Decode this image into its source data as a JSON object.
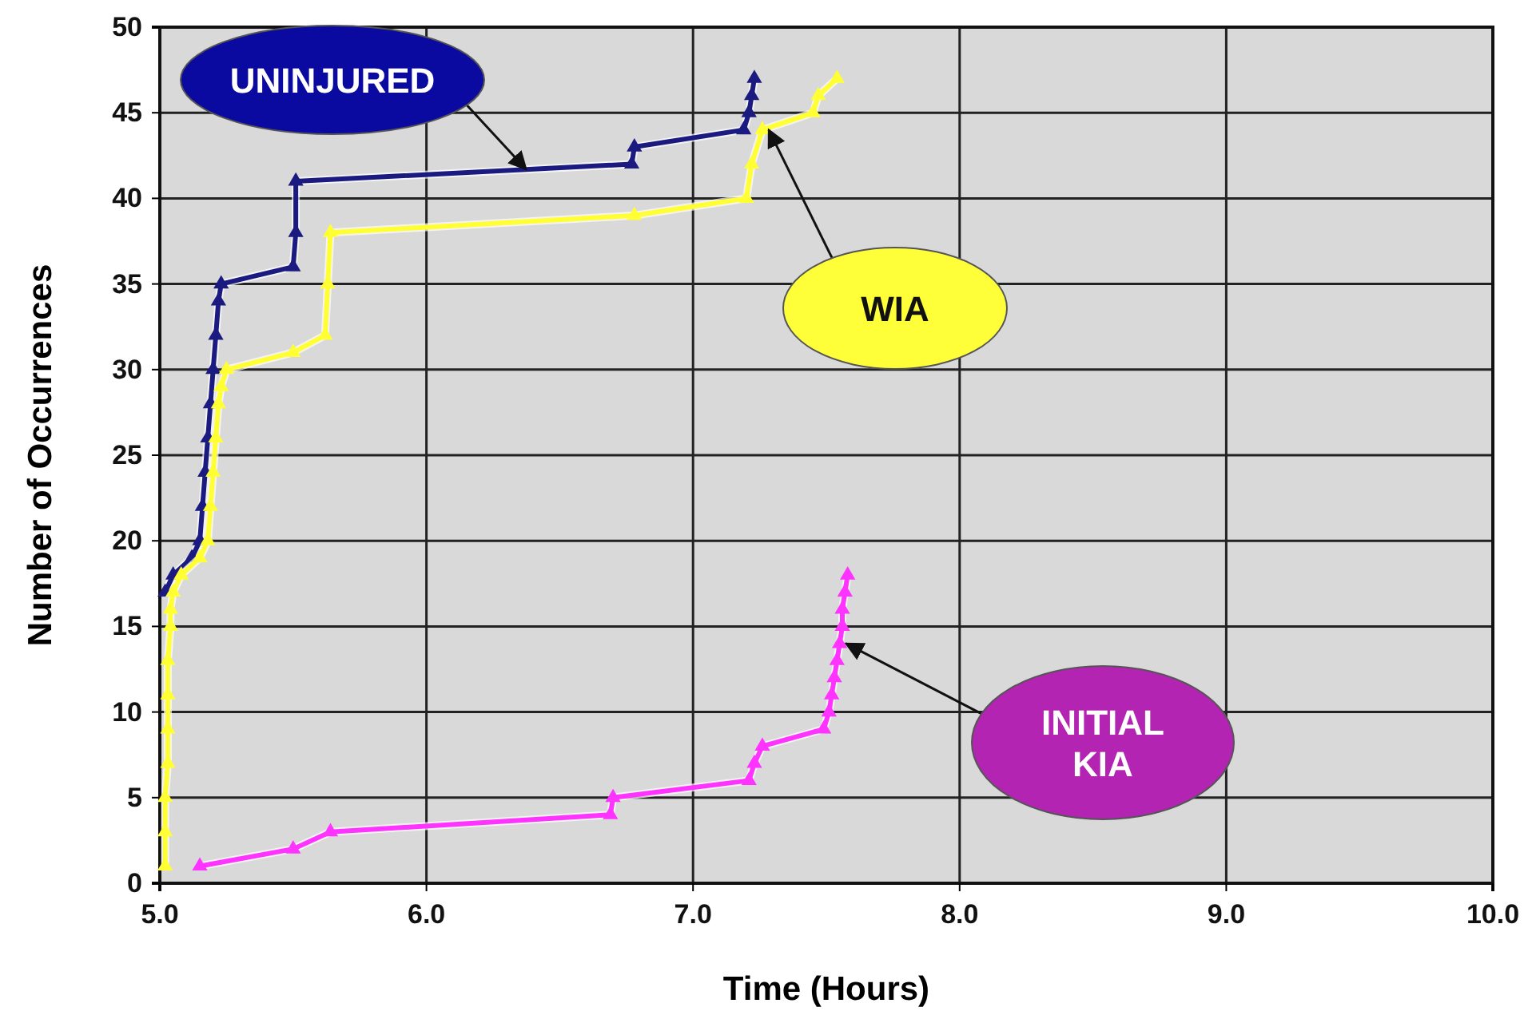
{
  "chart_data": {
    "type": "line",
    "xlabel": "Time (Hours)",
    "ylabel": "Number of Occurrences",
    "xlim": [
      5,
      10
    ],
    "xticks": [
      {
        "value": 5,
        "label": "5.0"
      },
      {
        "value": 6,
        "label": "6.0"
      },
      {
        "value": 7,
        "label": "7.0"
      },
      {
        "value": 8,
        "label": "8.0"
      },
      {
        "value": 9,
        "label": "9.0"
      },
      {
        "value": 10,
        "label": "10.0"
      }
    ],
    "ylim": [
      0,
      50
    ],
    "yticks": [
      0,
      5,
      10,
      15,
      20,
      25,
      30,
      35,
      40,
      45,
      50
    ],
    "grid": true,
    "marker": "triangle",
    "line_style": "solid",
    "series": [
      {
        "color": "#1a1a80",
        "x": [
          5.02,
          5.05,
          5.12,
          5.15,
          5.16,
          5.17,
          5.18,
          5.19,
          5.2,
          5.21,
          5.22,
          5.23,
          5.5,
          5.51,
          5.51,
          6.77,
          6.78,
          7.19,
          7.21,
          7.22,
          7.23
        ],
        "values": [
          17,
          18,
          19,
          20,
          22,
          24,
          26,
          28,
          30,
          32,
          34,
          35,
          36,
          38,
          41,
          42,
          43,
          44,
          45,
          46,
          47
        ]
      },
      {
        "color": "#ffff33",
        "x": [
          5.02,
          5.02,
          5.02,
          5.03,
          5.03,
          5.03,
          5.03,
          5.04,
          5.04,
          5.05,
          5.08,
          5.15,
          5.18,
          5.19,
          5.2,
          5.21,
          5.22,
          5.23,
          5.25,
          5.5,
          5.62,
          5.63,
          5.64,
          6.78,
          7.2,
          7.22,
          7.26,
          7.45,
          7.47,
          7.54
        ],
        "values": [
          1,
          3,
          5,
          7,
          9,
          11,
          13,
          15,
          16,
          17,
          18,
          19,
          20,
          22,
          24,
          26,
          28,
          29,
          30,
          31,
          32,
          35,
          38,
          39,
          40,
          42,
          44,
          45,
          46,
          47
        ]
      },
      {
        "color": "#ff33ff",
        "x": [
          5.15,
          5.5,
          5.64,
          6.69,
          6.7,
          7.21,
          7.23,
          7.26,
          7.49,
          7.51,
          7.52,
          7.53,
          7.54,
          7.55,
          7.56,
          7.56,
          7.57,
          7.58
        ],
        "values": [
          1,
          2,
          3,
          4,
          5,
          6,
          7,
          8,
          9,
          10,
          11,
          12,
          13,
          14,
          15,
          16,
          17,
          18
        ]
      }
    ],
    "annotations": [
      {
        "text": "UNINJURED",
        "x": 6.35,
        "y": 41.7
      },
      {
        "text": "WIA",
        "x": 7.26,
        "y": 44
      },
      "INITIAL KIA"
    ]
  }
}
